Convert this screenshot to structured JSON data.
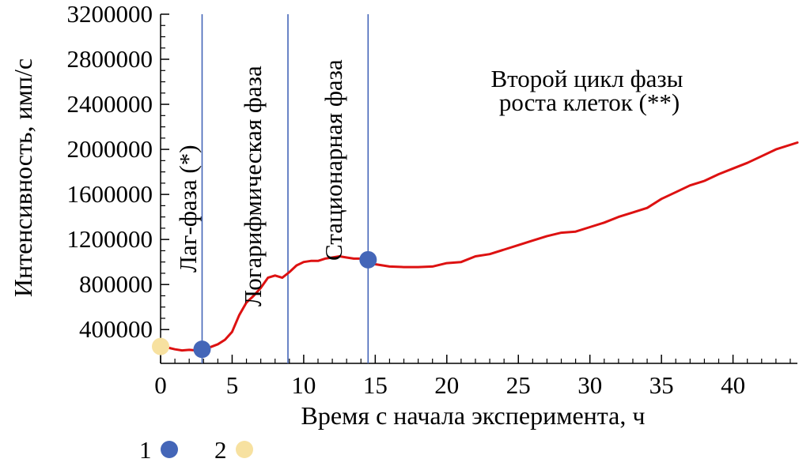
{
  "chart_data": {
    "type": "line",
    "title": "",
    "xlabel": "Время с начала эксперимента, ч",
    "ylabel": "Интенсивность, имп/с",
    "xlim": [
      0,
      44.5
    ],
    "ylim": [
      100000,
      3200000
    ],
    "x_ticks": [
      0,
      5,
      10,
      15,
      20,
      25,
      30,
      35,
      40
    ],
    "x_tick_labels": [
      "0",
      "5",
      "10",
      "15",
      "20",
      "25",
      "30",
      "35",
      "40"
    ],
    "y_ticks": [
      400000,
      800000,
      1200000,
      1600000,
      2000000,
      2400000,
      2800000,
      3200000
    ],
    "y_tick_labels": [
      "400000",
      "800000",
      "1200000",
      "1600000",
      "2000000",
      "2400000",
      "2800000",
      "3200000"
    ],
    "grid": false,
    "series": [
      {
        "name": "Интенсивность",
        "color": "#dd1111",
        "x": [
          0,
          0.5,
          1,
          1.5,
          2,
          2.5,
          3,
          3.5,
          4,
          4.5,
          5,
          5.5,
          6,
          6.5,
          7,
          7.5,
          8,
          8.5,
          9,
          9.5,
          10,
          10.5,
          11,
          11.5,
          12,
          12.5,
          13,
          13.5,
          14,
          14.5,
          15,
          16,
          17,
          18,
          19,
          20,
          21,
          22,
          23,
          24,
          25,
          26,
          27,
          28,
          29,
          30,
          31,
          32,
          33,
          34,
          35,
          36,
          37,
          38,
          39,
          40,
          41,
          42,
          43,
          44.5
        ],
        "values": [
          250000,
          240000,
          225000,
          215000,
          220000,
          215000,
          225000,
          245000,
          270000,
          310000,
          380000,
          530000,
          640000,
          700000,
          770000,
          860000,
          880000,
          860000,
          910000,
          970000,
          1000000,
          1010000,
          1010000,
          1030000,
          1040000,
          1050000,
          1040000,
          1030000,
          1030000,
          1020000,
          980000,
          960000,
          955000,
          955000,
          960000,
          990000,
          1000000,
          1050000,
          1070000,
          1110000,
          1150000,
          1190000,
          1230000,
          1260000,
          1270000,
          1310000,
          1350000,
          1400000,
          1440000,
          1480000,
          1560000,
          1620000,
          1680000,
          1720000,
          1780000,
          1830000,
          1880000,
          1940000,
          2000000,
          2060000
        ]
      }
    ],
    "phase_boundaries_x": [
      2.9,
      8.9,
      14.5
    ],
    "phase_labels": [
      "Лаг-фаза (*)",
      "Логарифмическая фаза",
      "Стационарная фаза"
    ],
    "annotation": [
      "Второй цикл фазы",
      "роста клеток (**)"
    ],
    "markers": [
      {
        "legend": "1",
        "color": "#4466b8",
        "points": [
          {
            "x": 2.9,
            "y": 225000
          },
          {
            "x": 14.5,
            "y": 1020000
          }
        ]
      },
      {
        "legend": "2",
        "color": "#f7e1a0",
        "points": [
          {
            "x": 0,
            "y": 250000
          }
        ]
      }
    ],
    "legend": [
      {
        "label": "1",
        "color": "#4466b8"
      },
      {
        "label": "2",
        "color": "#f7e1a0"
      }
    ],
    "legend_position": "bottom-left"
  }
}
